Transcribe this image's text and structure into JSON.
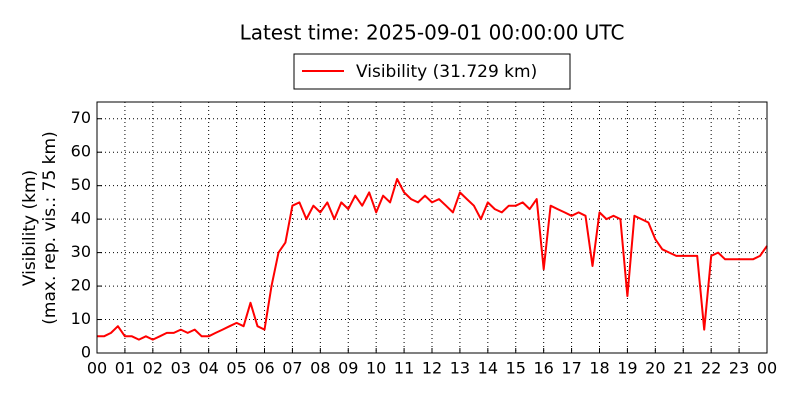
{
  "chart_data": {
    "type": "line",
    "title": "Latest time: 2025-09-01 00:00:00 UTC",
    "ylabel": [
      "Visibility (km)",
      "(max. rep. vis.: 75 km)"
    ],
    "x": [
      0,
      0.25,
      0.5,
      0.75,
      1,
      1.25,
      1.5,
      1.75,
      2,
      2.25,
      2.5,
      2.75,
      3,
      3.25,
      3.5,
      3.75,
      4,
      4.25,
      4.5,
      4.75,
      5,
      5.25,
      5.5,
      5.75,
      6,
      6.25,
      6.5,
      6.75,
      7,
      7.25,
      7.5,
      7.75,
      8,
      8.25,
      8.5,
      8.75,
      9,
      9.25,
      9.5,
      9.75,
      10,
      10.25,
      10.5,
      10.75,
      11,
      11.25,
      11.5,
      11.75,
      12,
      12.25,
      12.5,
      12.75,
      13,
      13.25,
      13.5,
      13.75,
      14,
      14.25,
      14.5,
      14.75,
      15,
      15.25,
      15.5,
      15.75,
      16,
      16.25,
      16.5,
      16.75,
      17,
      17.25,
      17.5,
      17.75,
      18,
      18.25,
      18.5,
      18.75,
      19,
      19.25,
      19.5,
      19.75,
      20,
      20.25,
      20.5,
      20.75,
      21,
      21.25,
      21.5,
      21.75,
      22,
      22.25,
      22.5,
      22.75,
      23,
      23.25,
      23.5,
      23.75,
      24
    ],
    "series": [
      {
        "name": "Visibility (31.729 km)",
        "color": "#ff0000",
        "values": [
          5,
          5,
          6,
          8,
          5,
          5,
          4,
          5,
          4,
          5,
          6,
          6,
          7,
          6,
          7,
          5,
          5,
          6,
          7,
          8,
          9,
          8,
          15,
          8,
          7,
          20,
          30,
          33,
          44,
          45,
          40,
          44,
          42,
          45,
          40,
          45,
          43,
          47,
          44,
          48,
          42,
          47,
          45,
          52,
          48,
          46,
          45,
          47,
          45,
          46,
          44,
          42,
          48,
          46,
          44,
          40,
          45,
          43,
          42,
          44,
          44,
          45,
          43,
          46,
          25,
          44,
          43,
          42,
          41,
          42,
          41,
          26,
          42,
          40,
          41,
          40,
          17,
          41,
          40,
          39,
          34,
          31,
          30,
          29,
          29,
          29,
          29,
          7,
          29,
          30,
          28,
          28,
          28,
          28,
          28,
          29,
          32
        ]
      }
    ],
    "xlim": [
      0,
      24
    ],
    "xticks": [
      {
        "value": 0,
        "label": "00"
      },
      {
        "value": 1,
        "label": "01"
      },
      {
        "value": 2,
        "label": "02"
      },
      {
        "value": 3,
        "label": "03"
      },
      {
        "value": 4,
        "label": "04"
      },
      {
        "value": 5,
        "label": "05"
      },
      {
        "value": 6,
        "label": "06"
      },
      {
        "value": 7,
        "label": "07"
      },
      {
        "value": 8,
        "label": "08"
      },
      {
        "value": 9,
        "label": "09"
      },
      {
        "value": 10,
        "label": "10"
      },
      {
        "value": 11,
        "label": "11"
      },
      {
        "value": 12,
        "label": "12"
      },
      {
        "value": 13,
        "label": "13"
      },
      {
        "value": 14,
        "label": "14"
      },
      {
        "value": 15,
        "label": "15"
      },
      {
        "value": 16,
        "label": "16"
      },
      {
        "value": 17,
        "label": "17"
      },
      {
        "value": 18,
        "label": "18"
      },
      {
        "value": 19,
        "label": "19"
      },
      {
        "value": 20,
        "label": "20"
      },
      {
        "value": 21,
        "label": "21"
      },
      {
        "value": 22,
        "label": "22"
      },
      {
        "value": 23,
        "label": "23"
      },
      {
        "value": 24,
        "label": "00"
      }
    ],
    "ylim": [
      0,
      75
    ],
    "yticks": [
      0,
      10,
      20,
      30,
      40,
      50,
      60,
      70
    ],
    "grid": true
  }
}
